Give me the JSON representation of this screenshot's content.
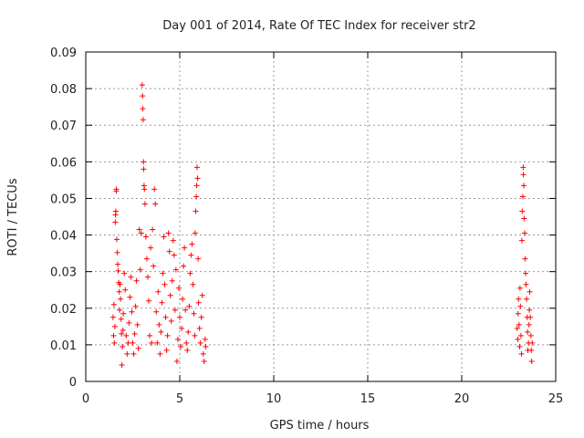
{
  "chart_data": {
    "type": "scatter",
    "title": "Day 001 of 2014, Rate Of TEC Index for receiver str2",
    "xlabel": "GPS time / hours",
    "ylabel": "ROTI / TECUs",
    "xlim": [
      0,
      25
    ],
    "ylim": [
      0,
      0.09
    ],
    "x_ticks": [
      0,
      5,
      10,
      15,
      20,
      25
    ],
    "y_ticks": [
      0,
      0.01,
      0.02,
      0.03,
      0.04,
      0.05,
      0.06,
      0.07,
      0.08,
      0.09
    ],
    "x_tick_labels": [
      "0",
      "5",
      "10",
      "15",
      "20",
      "25"
    ],
    "y_tick_labels": [
      "0",
      "0.01",
      "0.02",
      "0.03",
      "0.04",
      "0.05",
      "0.06",
      "0.07",
      "0.08",
      "0.09"
    ],
    "grid": true,
    "marker": "+",
    "color": "#ff0000",
    "series": [
      {
        "points": [
          [
            1.45,
            0.0175
          ],
          [
            1.48,
            0.0125
          ],
          [
            1.5,
            0.021
          ],
          [
            1.52,
            0.0105
          ],
          [
            1.55,
            0.015
          ],
          [
            1.57,
            0.0435
          ],
          [
            1.58,
            0.0455
          ],
          [
            1.6,
            0.0465
          ],
          [
            1.62,
            0.052
          ],
          [
            1.63,
            0.0525
          ],
          [
            1.65,
            0.0388
          ],
          [
            1.68,
            0.0352
          ],
          [
            1.7,
            0.032
          ],
          [
            1.72,
            0.0302
          ],
          [
            1.75,
            0.027
          ],
          [
            1.78,
            0.0245
          ],
          [
            1.8,
            0.0195
          ],
          [
            1.82,
            0.0265
          ],
          [
            1.85,
            0.0225
          ],
          [
            1.88,
            0.017
          ],
          [
            1.9,
            0.013
          ],
          [
            1.92,
            0.0045
          ],
          [
            1.95,
            0.0095
          ],
          [
            1.98,
            0.014
          ],
          [
            2.0,
            0.0185
          ],
          [
            2.05,
            0.0295
          ],
          [
            2.1,
            0.025
          ],
          [
            2.15,
            0.0125
          ],
          [
            2.2,
            0.0075
          ],
          [
            2.25,
            0.0105
          ],
          [
            2.3,
            0.016
          ],
          [
            2.35,
            0.023
          ],
          [
            2.4,
            0.0285
          ],
          [
            2.45,
            0.019
          ],
          [
            2.5,
            0.0105
          ],
          [
            2.55,
            0.0075
          ],
          [
            2.6,
            0.013
          ],
          [
            2.65,
            0.0205
          ],
          [
            2.7,
            0.0275
          ],
          [
            2.75,
            0.0155
          ],
          [
            2.8,
            0.009
          ],
          [
            2.85,
            0.0415
          ],
          [
            2.9,
            0.0305
          ],
          [
            2.95,
            0.0405
          ],
          [
            3.0,
            0.081
          ],
          [
            3.02,
            0.078
          ],
          [
            3.03,
            0.0745
          ],
          [
            3.05,
            0.0715
          ],
          [
            3.07,
            0.06
          ],
          [
            3.08,
            0.058
          ],
          [
            3.1,
            0.0535
          ],
          [
            3.12,
            0.0525
          ],
          [
            3.15,
            0.0485
          ],
          [
            3.2,
            0.0395
          ],
          [
            3.25,
            0.0335
          ],
          [
            3.3,
            0.0285
          ],
          [
            3.35,
            0.022
          ],
          [
            3.4,
            0.0125
          ],
          [
            3.45,
            0.0365
          ],
          [
            3.5,
            0.0105
          ],
          [
            3.55,
            0.0415
          ],
          [
            3.6,
            0.0315
          ],
          [
            3.65,
            0.0525
          ],
          [
            3.7,
            0.0485
          ],
          [
            3.75,
            0.019
          ],
          [
            3.8,
            0.0105
          ],
          [
            3.85,
            0.0245
          ],
          [
            3.9,
            0.0155
          ],
          [
            3.95,
            0.0075
          ],
          [
            4.0,
            0.0135
          ],
          [
            4.05,
            0.0215
          ],
          [
            4.1,
            0.0295
          ],
          [
            4.15,
            0.0395
          ],
          [
            4.2,
            0.0265
          ],
          [
            4.25,
            0.0175
          ],
          [
            4.3,
            0.0085
          ],
          [
            4.35,
            0.0125
          ],
          [
            4.4,
            0.0405
          ],
          [
            4.45,
            0.0355
          ],
          [
            4.5,
            0.0235
          ],
          [
            4.55,
            0.0165
          ],
          [
            4.6,
            0.0275
          ],
          [
            4.65,
            0.0385
          ],
          [
            4.7,
            0.0345
          ],
          [
            4.75,
            0.0195
          ],
          [
            4.8,
            0.0305
          ],
          [
            4.85,
            0.0055
          ],
          [
            4.9,
            0.0115
          ],
          [
            4.95,
            0.0255
          ],
          [
            5.0,
            0.0175
          ],
          [
            5.05,
            0.0095
          ],
          [
            5.1,
            0.0145
          ],
          [
            5.15,
            0.0225
          ],
          [
            5.2,
            0.0315
          ],
          [
            5.25,
            0.0365
          ],
          [
            5.3,
            0.0195
          ],
          [
            5.35,
            0.0105
          ],
          [
            5.4,
            0.0085
          ],
          [
            5.45,
            0.0135
          ],
          [
            5.5,
            0.0205
          ],
          [
            5.55,
            0.0295
          ],
          [
            5.6,
            0.0345
          ],
          [
            5.65,
            0.0375
          ],
          [
            5.7,
            0.0265
          ],
          [
            5.75,
            0.0185
          ],
          [
            5.8,
            0.0125
          ],
          [
            5.82,
            0.0405
          ],
          [
            5.85,
            0.0465
          ],
          [
            5.88,
            0.0505
          ],
          [
            5.9,
            0.0535
          ],
          [
            5.92,
            0.0585
          ],
          [
            5.95,
            0.0555
          ],
          [
            5.98,
            0.0335
          ],
          [
            6.0,
            0.0215
          ],
          [
            6.05,
            0.0145
          ],
          [
            6.1,
            0.0105
          ],
          [
            6.15,
            0.0175
          ],
          [
            6.2,
            0.0235
          ],
          [
            6.25,
            0.0075
          ],
          [
            6.3,
            0.0055
          ],
          [
            6.35,
            0.0115
          ],
          [
            6.38,
            0.0095
          ],
          [
            22.95,
            0.0145
          ],
          [
            22.98,
            0.0115
          ],
          [
            23.0,
            0.0185
          ],
          [
            23.02,
            0.0225
          ],
          [
            23.05,
            0.0155
          ],
          [
            23.08,
            0.0095
          ],
          [
            23.1,
            0.0255
          ],
          [
            23.12,
            0.0205
          ],
          [
            23.15,
            0.0125
          ],
          [
            23.18,
            0.0075
          ],
          [
            23.2,
            0.0385
          ],
          [
            23.22,
            0.0465
          ],
          [
            23.25,
            0.0505
          ],
          [
            23.27,
            0.0585
          ],
          [
            23.28,
            0.0565
          ],
          [
            23.3,
            0.0535
          ],
          [
            23.32,
            0.0445
          ],
          [
            23.35,
            0.0405
          ],
          [
            23.37,
            0.0335
          ],
          [
            23.4,
            0.0295
          ],
          [
            23.42,
            0.0265
          ],
          [
            23.45,
            0.0225
          ],
          [
            23.48,
            0.0175
          ],
          [
            23.5,
            0.0135
          ],
          [
            23.52,
            0.0085
          ],
          [
            23.55,
            0.0105
          ],
          [
            23.58,
            0.0155
          ],
          [
            23.6,
            0.0195
          ],
          [
            23.62,
            0.0245
          ],
          [
            23.65,
            0.0175
          ],
          [
            23.68,
            0.0125
          ],
          [
            23.7,
            0.0085
          ],
          [
            23.72,
            0.0055
          ],
          [
            23.75,
            0.0105
          ]
        ]
      }
    ]
  }
}
